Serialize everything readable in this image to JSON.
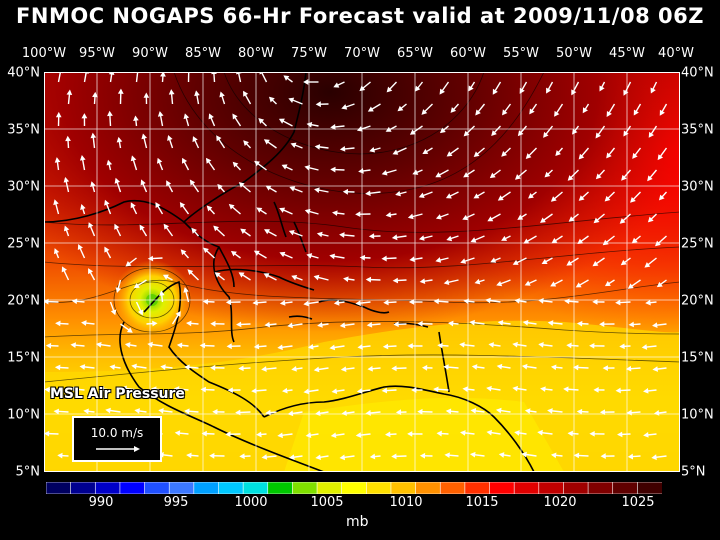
{
  "title": "FNMOC NOGAPS 66-Hr Forecast valid at 2009/11/08 06Z",
  "lon_labels": [
    "100°W",
    "95°W",
    "90°W",
    "85°W",
    "80°W",
    "75°W",
    "70°W",
    "65°W",
    "60°W",
    "55°W",
    "50°W",
    "45°W",
    "40°W"
  ],
  "lat_labels": [
    "40°N",
    "35°N",
    "30°N",
    "25°N",
    "20°N",
    "15°N",
    "10°N",
    "5°N"
  ],
  "map_label": "MSL Air Pressure",
  "reference_vector": {
    "label": "10.0 m/s"
  },
  "colorbar": {
    "labels": [
      "990",
      "995",
      "1000",
      "1005",
      "1010",
      "1015",
      "1020",
      "1025"
    ],
    "units": "mb",
    "colors": [
      "#000060",
      "#000090",
      "#0000c8",
      "#0000ff",
      "#2050ff",
      "#3c78ff",
      "#00a0ff",
      "#00c8ff",
      "#00e0e0",
      "#00c800",
      "#80e000",
      "#e0f000",
      "#ffff00",
      "#ffe000",
      "#ffc000",
      "#ff9000",
      "#ff6000",
      "#ff3000",
      "#ff0000",
      "#e00000",
      "#c00000",
      "#a00000",
      "#800000",
      "#600000",
      "#400000"
    ]
  },
  "colors": {
    "background": "#000000",
    "land_outline": "#000000",
    "wind_arrows": "#ffffff",
    "grid": "#ffffff"
  }
}
